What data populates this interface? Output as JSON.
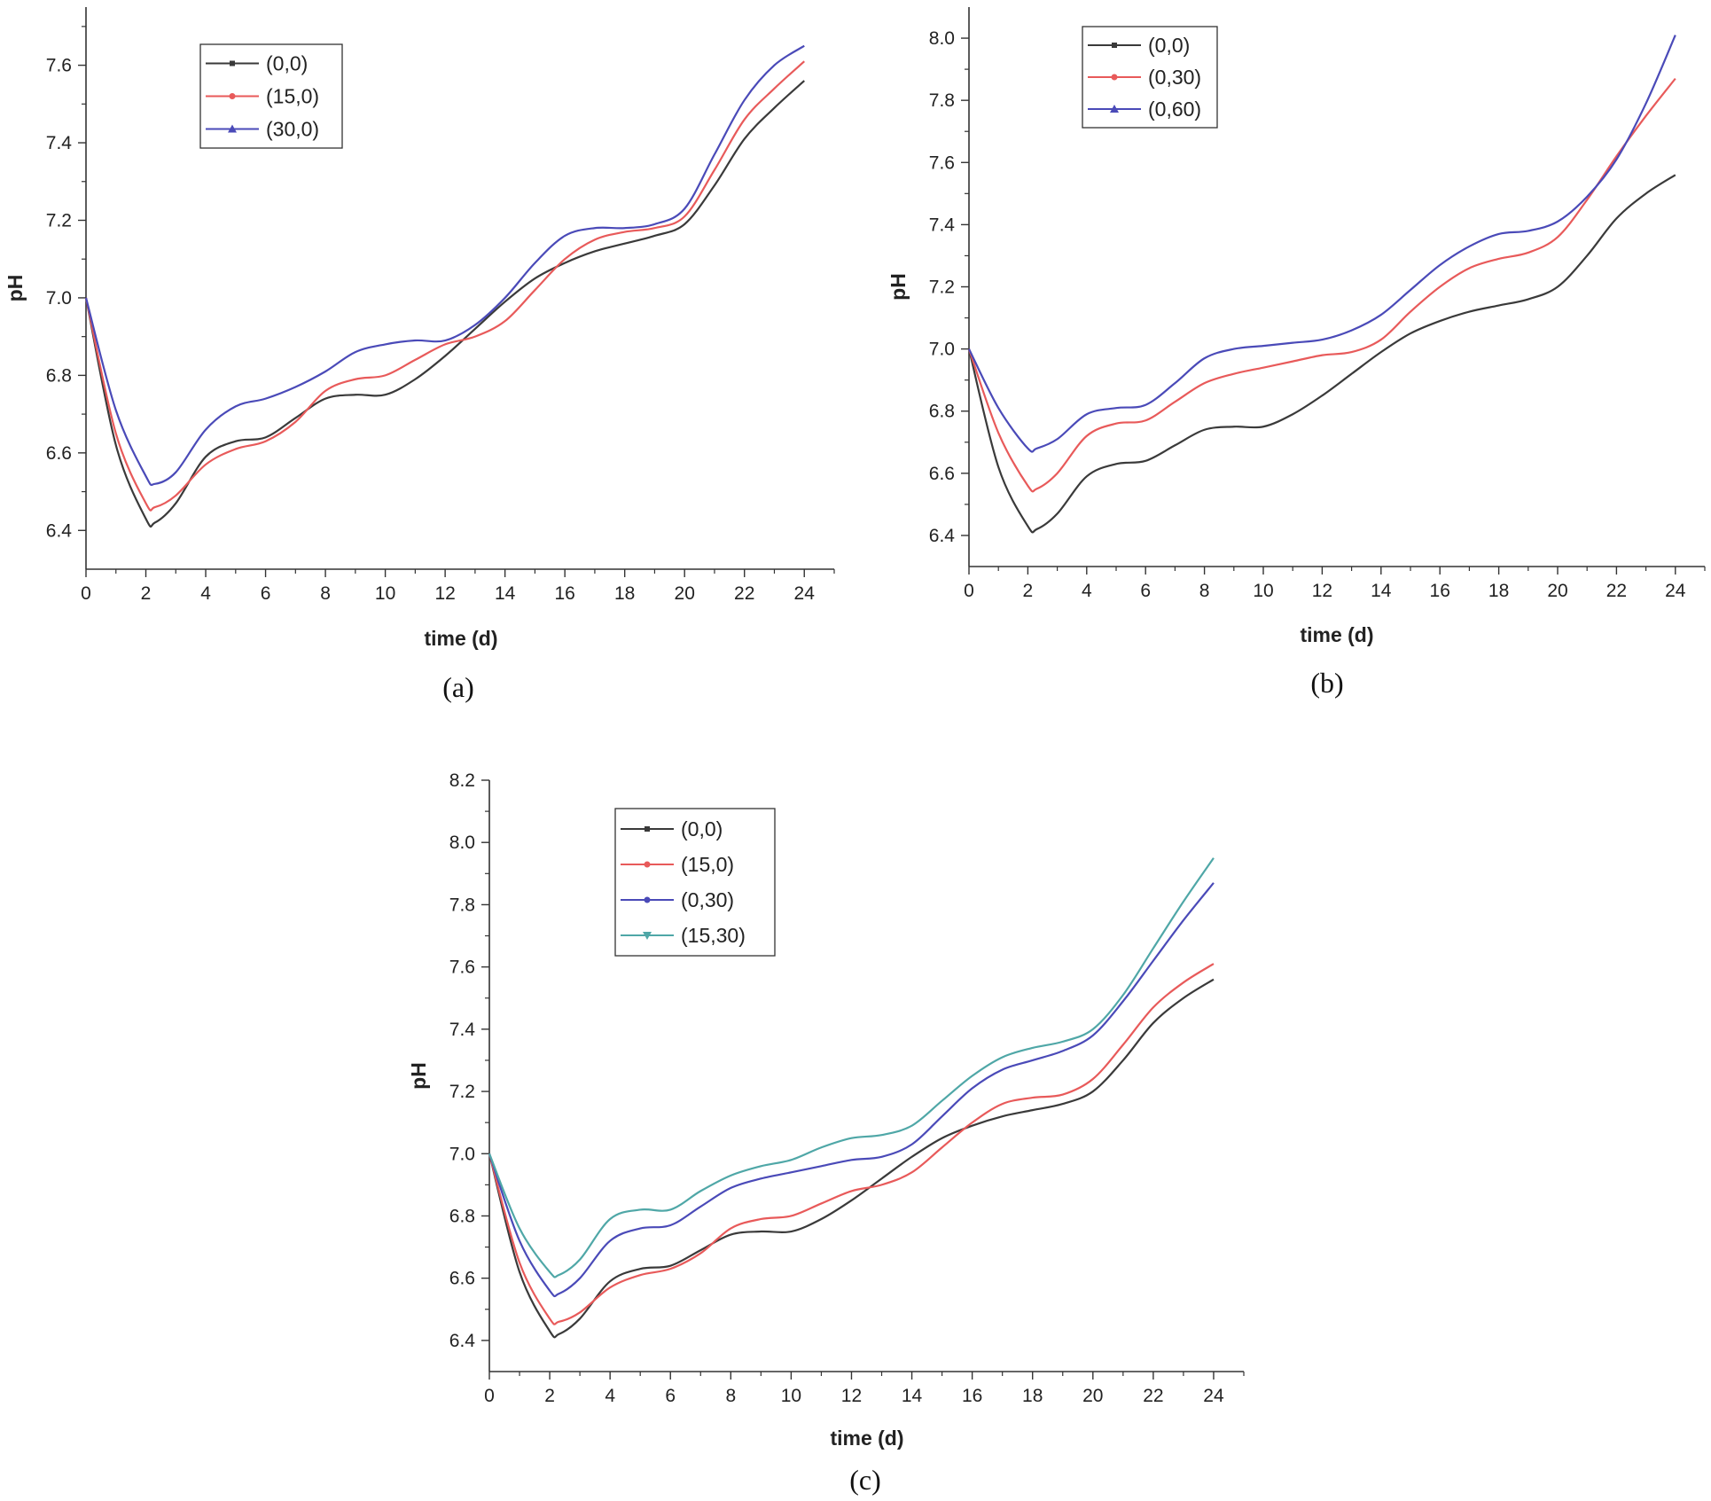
{
  "chart_data": [
    {
      "type": "line",
      "panel_label": "(a)",
      "xlabel": "time (d)",
      "ylabel": "pH",
      "xlim": [
        0,
        25
      ],
      "ylim": [
        6.3,
        7.75
      ],
      "xticks": [
        0,
        2,
        4,
        6,
        8,
        10,
        12,
        14,
        16,
        18,
        20,
        22,
        24
      ],
      "xtick_labels": [
        "0",
        "2",
        "4",
        "6",
        "8",
        "10",
        "12",
        "14",
        "16",
        "18",
        "20",
        "22",
        "24"
      ],
      "yticks": [
        6.4,
        6.6,
        6.8,
        7.0,
        7.2,
        7.4,
        7.6
      ],
      "ytick_labels": [
        "6.4",
        "6.6",
        "6.8",
        "7.0",
        "7.2",
        "7.4",
        "7.6"
      ],
      "legend_position": "top-left",
      "x": [
        0,
        1,
        2,
        2.3,
        3,
        4,
        5,
        6,
        7,
        8,
        9,
        10,
        11,
        12,
        13,
        14,
        15,
        16,
        17,
        18,
        19,
        20,
        21,
        22,
        23,
        24
      ],
      "series": [
        {
          "name": "(0,0)",
          "color": "#3a3a3a",
          "marker": "square",
          "values": [
            7.0,
            6.62,
            6.43,
            6.42,
            6.47,
            6.59,
            6.63,
            6.64,
            6.69,
            6.74,
            6.75,
            6.75,
            6.79,
            6.85,
            6.92,
            6.99,
            7.05,
            7.09,
            7.12,
            7.14,
            7.16,
            7.19,
            7.29,
            7.41,
            7.49,
            7.56
          ]
        },
        {
          "name": "(15,0)",
          "color": "#e85a5a",
          "marker": "circle",
          "values": [
            7.0,
            6.65,
            6.47,
            6.46,
            6.49,
            6.57,
            6.61,
            6.63,
            6.68,
            6.76,
            6.79,
            6.8,
            6.84,
            6.88,
            6.9,
            6.94,
            7.02,
            7.1,
            7.15,
            7.17,
            7.18,
            7.21,
            7.33,
            7.46,
            7.54,
            7.61
          ]
        },
        {
          "name": "(30,0)",
          "color": "#4a4ab8",
          "marker": "triangle",
          "values": [
            7.0,
            6.71,
            6.54,
            6.52,
            6.55,
            6.66,
            6.72,
            6.74,
            6.77,
            6.81,
            6.86,
            6.88,
            6.89,
            6.89,
            6.93,
            7.0,
            7.09,
            7.16,
            7.18,
            7.18,
            7.19,
            7.23,
            7.37,
            7.51,
            7.6,
            7.65
          ]
        }
      ]
    },
    {
      "type": "line",
      "panel_label": "(b)",
      "xlabel": "time (d)",
      "ylabel": "pH",
      "xlim": [
        0,
        25
      ],
      "ylim": [
        6.3,
        8.1
      ],
      "xticks": [
        0,
        2,
        4,
        6,
        8,
        10,
        12,
        14,
        16,
        18,
        20,
        22,
        24
      ],
      "xtick_labels": [
        "0",
        "2",
        "4",
        "6",
        "8",
        "10",
        "12",
        "14",
        "16",
        "18",
        "20",
        "22",
        "24"
      ],
      "yticks": [
        6.4,
        6.6,
        6.8,
        7.0,
        7.2,
        7.4,
        7.6,
        7.8,
        8.0
      ],
      "ytick_labels": [
        "6.4",
        "6.6",
        "6.8",
        "7.0",
        "7.2",
        "7.4",
        "7.6",
        "7.8",
        "8.0"
      ],
      "legend_position": "top-left",
      "x": [
        0,
        1,
        2,
        2.3,
        3,
        4,
        5,
        6,
        7,
        8,
        9,
        10,
        11,
        12,
        13,
        14,
        15,
        16,
        17,
        18,
        19,
        20,
        21,
        22,
        23,
        24
      ],
      "series": [
        {
          "name": "(0,0)",
          "color": "#3a3a3a",
          "marker": "square",
          "values": [
            7.0,
            6.62,
            6.43,
            6.42,
            6.47,
            6.59,
            6.63,
            6.64,
            6.69,
            6.74,
            6.75,
            6.75,
            6.79,
            6.85,
            6.92,
            6.99,
            7.05,
            7.09,
            7.12,
            7.14,
            7.16,
            7.2,
            7.3,
            7.42,
            7.5,
            7.56
          ]
        },
        {
          "name": "(0,30)",
          "color": "#e85a5a",
          "marker": "circle",
          "values": [
            7.0,
            6.73,
            6.56,
            6.55,
            6.6,
            6.72,
            6.76,
            6.77,
            6.83,
            6.89,
            6.92,
            6.94,
            6.96,
            6.98,
            6.99,
            7.03,
            7.12,
            7.2,
            7.26,
            7.29,
            7.31,
            7.36,
            7.48,
            7.62,
            7.75,
            7.87
          ]
        },
        {
          "name": "(0,60)",
          "color": "#4a4ab8",
          "marker": "triangle",
          "values": [
            7.0,
            6.81,
            6.68,
            6.68,
            6.71,
            6.79,
            6.81,
            6.82,
            6.89,
            6.97,
            7.0,
            7.01,
            7.02,
            7.03,
            7.06,
            7.11,
            7.19,
            7.27,
            7.33,
            7.37,
            7.38,
            7.41,
            7.49,
            7.61,
            7.79,
            8.01
          ]
        }
      ]
    },
    {
      "type": "line",
      "panel_label": "(c)",
      "xlabel": "time (d)",
      "ylabel": "pH",
      "xlim": [
        0,
        25
      ],
      "ylim": [
        6.3,
        8.2
      ],
      "xticks": [
        0,
        2,
        4,
        6,
        8,
        10,
        12,
        14,
        16,
        18,
        20,
        22,
        24
      ],
      "xtick_labels": [
        "0",
        "2",
        "4",
        "6",
        "8",
        "10",
        "12",
        "14",
        "16",
        "18",
        "20",
        "22",
        "24"
      ],
      "yticks": [
        6.4,
        6.6,
        6.8,
        7.0,
        7.2,
        7.4,
        7.6,
        7.8,
        8.0,
        8.2
      ],
      "ytick_labels": [
        "6.4",
        "6.6",
        "6.8",
        "7.0",
        "7.2",
        "7.4",
        "7.6",
        "7.8",
        "8.0",
        "8.2"
      ],
      "legend_position": "top-left",
      "x": [
        0,
        1,
        2,
        2.3,
        3,
        4,
        5,
        6,
        7,
        8,
        9,
        10,
        11,
        12,
        13,
        14,
        15,
        16,
        17,
        18,
        19,
        20,
        21,
        22,
        23,
        24
      ],
      "series": [
        {
          "name": "(0,0)",
          "color": "#3a3a3a",
          "marker": "square",
          "values": [
            7.0,
            6.62,
            6.43,
            6.42,
            6.47,
            6.59,
            6.63,
            6.64,
            6.69,
            6.74,
            6.75,
            6.75,
            6.79,
            6.85,
            6.92,
            6.99,
            7.05,
            7.09,
            7.12,
            7.14,
            7.16,
            7.2,
            7.3,
            7.42,
            7.5,
            7.56
          ]
        },
        {
          "name": "(15,0)",
          "color": "#e85a5a",
          "marker": "circle",
          "values": [
            7.0,
            6.65,
            6.47,
            6.46,
            6.49,
            6.57,
            6.61,
            6.63,
            6.68,
            6.76,
            6.79,
            6.8,
            6.84,
            6.88,
            6.9,
            6.94,
            7.02,
            7.1,
            7.16,
            7.18,
            7.19,
            7.24,
            7.35,
            7.47,
            7.55,
            7.61
          ]
        },
        {
          "name": "(0,30)",
          "color": "#4a4ab8",
          "marker": "circle",
          "values": [
            7.0,
            6.72,
            6.56,
            6.55,
            6.6,
            6.72,
            6.76,
            6.77,
            6.83,
            6.89,
            6.92,
            6.94,
            6.96,
            6.98,
            6.99,
            7.03,
            7.12,
            7.21,
            7.27,
            7.3,
            7.33,
            7.38,
            7.49,
            7.62,
            7.75,
            7.87
          ]
        },
        {
          "name": "(15,30)",
          "color": "#4fa7a7",
          "marker": "triangle-down",
          "values": [
            7.0,
            6.76,
            6.62,
            6.61,
            6.66,
            6.79,
            6.82,
            6.82,
            6.88,
            6.93,
            6.96,
            6.98,
            7.02,
            7.05,
            7.06,
            7.09,
            7.17,
            7.25,
            7.31,
            7.34,
            7.36,
            7.4,
            7.51,
            7.66,
            7.81,
            7.95
          ]
        }
      ]
    }
  ]
}
